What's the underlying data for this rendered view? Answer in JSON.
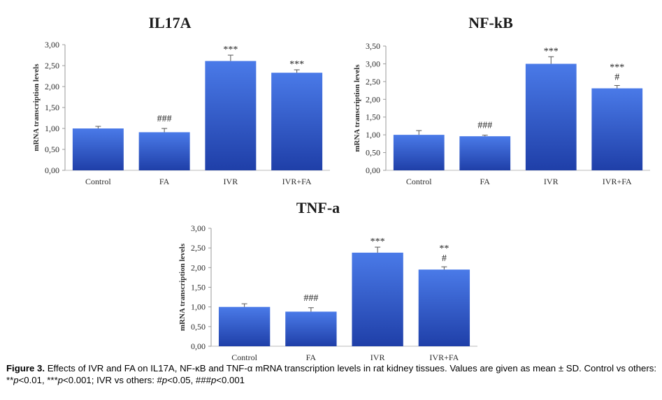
{
  "chart_data": [
    {
      "type": "bar",
      "title": "IL17A",
      "ylabel": "mRNA transcription levels",
      "categories": [
        "Control",
        "FA",
        "IVR",
        "IVR+FA"
      ],
      "values": [
        1.0,
        0.91,
        2.61,
        2.33
      ],
      "errors": [
        0.05,
        0.09,
        0.14,
        0.07
      ],
      "annotations": [
        [
          "",
          ""
        ],
        [
          "###",
          ""
        ],
        [
          "***",
          ""
        ],
        [
          "***",
          ""
        ]
      ],
      "ylim": [
        0,
        3.0
      ],
      "yticks": [
        "0,00",
        "0,50",
        "1,00",
        "1,50",
        "2,00",
        "2,50",
        "3,00"
      ],
      "bar_color": "#2f5fd6",
      "bar_color_light": "#4a7ae8",
      "bar_color_dark": "#1f3fa8"
    },
    {
      "type": "bar",
      "title": "NF-kB",
      "ylabel": "mRNA transcription levels",
      "categories": [
        "Control",
        "FA",
        "IVR",
        "IVR+FA"
      ],
      "values": [
        1.0,
        0.96,
        3.0,
        2.31
      ],
      "errors": [
        0.12,
        0.03,
        0.2,
        0.08
      ],
      "annotations": [
        [
          "",
          ""
        ],
        [
          "###",
          ""
        ],
        [
          "***",
          ""
        ],
        [
          "***",
          "#"
        ]
      ],
      "ylim": [
        0,
        3.5
      ],
      "yticks": [
        "0,00",
        "0,50",
        "1,00",
        "1,50",
        "2,00",
        "2,50",
        "3,00",
        "3,50"
      ],
      "bar_color": "#2f5fd6",
      "bar_color_light": "#4a7ae8",
      "bar_color_dark": "#1f3fa8"
    },
    {
      "type": "bar",
      "title": "TNF-a",
      "ylabel": "mRNA transcription levels",
      "categories": [
        "Control",
        "FA",
        "IVR",
        "IVR+FA"
      ],
      "values": [
        1.0,
        0.88,
        2.38,
        1.95
      ],
      "errors": [
        0.08,
        0.1,
        0.14,
        0.07
      ],
      "annotations": [
        [
          "",
          ""
        ],
        [
          "###",
          ""
        ],
        [
          "***",
          ""
        ],
        [
          "**",
          "#"
        ]
      ],
      "ylim": [
        0,
        3.0
      ],
      "yticks": [
        "0,00",
        "0,50",
        "1,00",
        "1,50",
        "2,00",
        "2,50",
        "3,00"
      ],
      "bar_color": "#2f5fd6",
      "bar_color_light": "#4a7ae8",
      "bar_color_dark": "#1f3fa8"
    }
  ],
  "caption": {
    "label": "Figure 3.",
    "line1": " Effects of IVR and FA on IL17A, NF-κB and TNF-α mRNA transcription levels in rat kidney tissues. Values are given as mean ± SD. Control vs others: **",
    "p1": "p",
    "t1": "<0.01, ***",
    "p2": "p",
    "t2": "<0.001; IVR vs others: #",
    "p3": "p",
    "t3": "<0.05, ###",
    "p4": "p",
    "t4": "<0.001"
  }
}
